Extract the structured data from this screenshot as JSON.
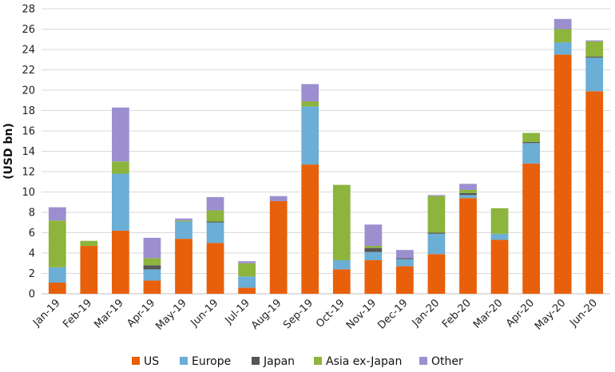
{
  "chart_data": {
    "type": "bar",
    "stacked": true,
    "title": "",
    "xlabel": "",
    "ylabel": "(USD bn)",
    "ylim": [
      0,
      28
    ],
    "yticks": [
      0,
      2,
      4,
      6,
      8,
      10,
      12,
      14,
      16,
      18,
      20,
      22,
      24,
      26,
      28
    ],
    "grid": "horizontal",
    "legend_position": "bottom",
    "categories": [
      "Jan-19",
      "Feb-19",
      "Mar-19",
      "Apr-19",
      "May-19",
      "Jun-19",
      "Jul-19",
      "Aug-19",
      "Sep-19",
      "Oct-19",
      "Nov-19",
      "Dec-19",
      "Jan-20",
      "Feb-20",
      "Mar-20",
      "Apr-20",
      "May-20",
      "Jun-20"
    ],
    "series": [
      {
        "name": "US",
        "color": "#E8600A",
        "values": [
          1.1,
          4.7,
          6.2,
          1.3,
          5.4,
          5.0,
          0.6,
          9.1,
          12.7,
          2.4,
          3.3,
          2.7,
          3.9,
          9.4,
          5.3,
          12.8,
          23.5,
          19.9
        ]
      },
      {
        "name": "Europe",
        "color": "#6BAED6",
        "values": [
          1.5,
          0.0,
          5.6,
          1.1,
          1.7,
          2.0,
          1.1,
          0.0,
          5.7,
          0.9,
          0.8,
          0.7,
          2.0,
          0.3,
          0.6,
          2.0,
          1.2,
          3.3
        ]
      },
      {
        "name": "Japan",
        "color": "#555555",
        "values": [
          0.0,
          0.0,
          0.0,
          0.4,
          0.0,
          0.1,
          0.0,
          0.0,
          0.0,
          0.0,
          0.4,
          0.1,
          0.1,
          0.2,
          0.0,
          0.1,
          0.0,
          0.1
        ]
      },
      {
        "name": "Asia ex-Japan",
        "color": "#8DB43C",
        "values": [
          4.6,
          0.5,
          1.2,
          0.7,
          0.1,
          1.1,
          1.3,
          0.0,
          0.5,
          7.4,
          0.2,
          0.0,
          3.6,
          0.3,
          2.5,
          0.9,
          1.3,
          1.5
        ]
      },
      {
        "name": "Other",
        "color": "#9B8FD0",
        "values": [
          1.3,
          0.0,
          5.3,
          2.0,
          0.2,
          1.3,
          0.2,
          0.5,
          1.7,
          0.0,
          2.1,
          0.8,
          0.1,
          0.6,
          0.0,
          0.0,
          1.0,
          0.1
        ]
      }
    ]
  }
}
